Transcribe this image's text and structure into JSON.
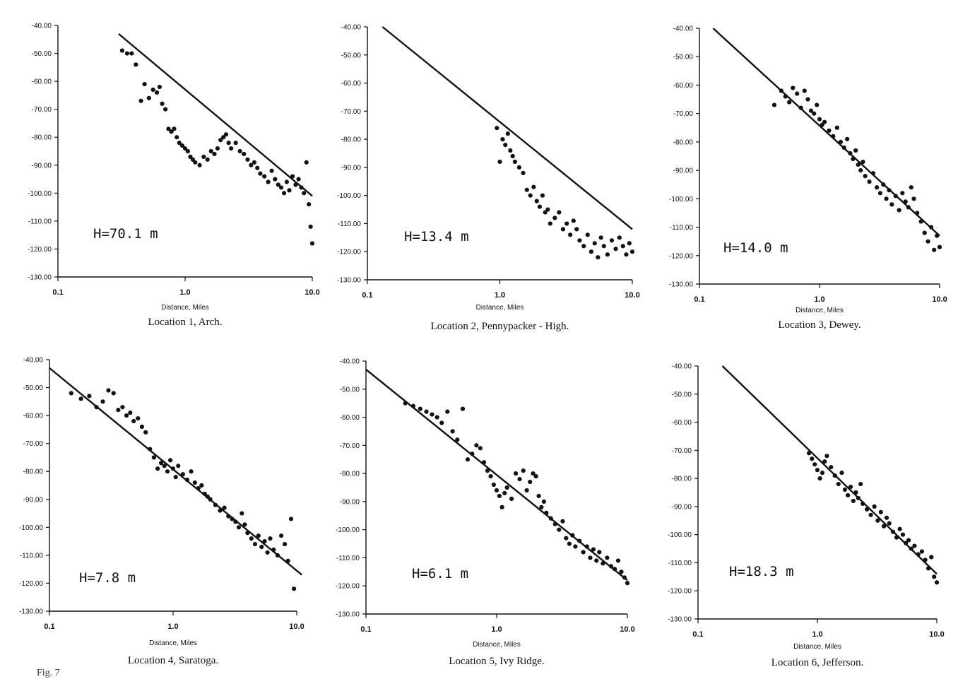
{
  "figure_footer": "Fig. 7",
  "chart_data": [
    {
      "type": "scatter",
      "caption": "Location 1, Arch.",
      "xlabel": "Distance, Miles",
      "annotation": "H=70.1 m",
      "xscale": "log",
      "xlim": [
        0.1,
        10.0
      ],
      "xticks": [
        "0.1",
        "1.0",
        "10.0"
      ],
      "ylim": [
        -130,
        -40
      ],
      "yticks": [
        "-40.00",
        "-50.00",
        "-60.00",
        "-70.00",
        "-80.00",
        "-90.00",
        "-100.00",
        "-110.00",
        "-120.00",
        "-130.00"
      ],
      "series": [
        {
          "kind": "line",
          "x": [
            0.3,
            10.0
          ],
          "y": [
            -43,
            -101
          ]
        },
        {
          "kind": "points",
          "x": [
            0.32,
            0.35,
            0.38,
            0.41,
            0.45,
            0.48,
            0.52,
            0.56,
            0.6,
            0.63,
            0.66,
            0.7,
            0.74,
            0.78,
            0.82,
            0.86,
            0.9,
            0.95,
            1.0,
            1.05,
            1.1,
            1.15,
            1.2,
            1.3,
            1.4,
            1.5,
            1.6,
            1.7,
            1.8,
            1.9,
            2.0,
            2.1,
            2.2,
            2.3,
            2.5,
            2.7,
            2.9,
            3.1,
            3.3,
            3.5,
            3.7,
            3.9,
            4.2,
            4.5,
            4.8,
            5.1,
            5.4,
            5.7,
            6.0,
            6.3,
            6.6,
            7.0,
            7.4,
            7.8,
            8.2,
            8.6,
            9.0,
            9.4,
            9.7,
            10.0
          ],
          "y": [
            -49,
            -50,
            -50,
            -54,
            -67,
            -61,
            -66,
            -63,
            -64,
            -62,
            -68,
            -70,
            -77,
            -78,
            -77,
            -80,
            -82,
            -83,
            -84,
            -85,
            -87,
            -88,
            -89,
            -90,
            -87,
            -88,
            -85,
            -86,
            -84,
            -81,
            -80,
            -79,
            -82,
            -84,
            -82,
            -85,
            -86,
            -88,
            -90,
            -89,
            -91,
            -93,
            -94,
            -96,
            -92,
            -95,
            -97,
            -98,
            -100,
            -96,
            -99,
            -94,
            -97,
            -95,
            -98,
            -100,
            -89,
            -104,
            -112,
            -118
          ]
        }
      ]
    },
    {
      "type": "scatter",
      "caption": "Location 2, Pennypacker - High.",
      "xlabel": "Distance, Miles",
      "annotation": "H=13.4 m",
      "xscale": "log",
      "xlim": [
        0.1,
        10.0
      ],
      "xticks": [
        "0.1",
        "1.0",
        "10.0"
      ],
      "ylim": [
        -130,
        -40
      ],
      "yticks": [
        "-40.00",
        "-50.00",
        "-60.00",
        "-70.00",
        "-80.00",
        "-90.00",
        "-100.00",
        "-110.00",
        "-120.00",
        "-130.00"
      ],
      "series": [
        {
          "kind": "line",
          "x": [
            0.13,
            10.0
          ],
          "y": [
            -40,
            -112
          ]
        },
        {
          "kind": "points",
          "x": [
            0.95,
            1.0,
            1.05,
            1.1,
            1.15,
            1.2,
            1.25,
            1.3,
            1.4,
            1.5,
            1.6,
            1.7,
            1.8,
            1.9,
            2.0,
            2.1,
            2.2,
            2.3,
            2.4,
            2.6,
            2.8,
            3.0,
            3.2,
            3.4,
            3.6,
            3.8,
            4.0,
            4.3,
            4.6,
            4.9,
            5.2,
            5.5,
            5.8,
            6.1,
            6.5,
            7.0,
            7.5,
            8.0,
            8.5,
            9.0,
            9.5,
            10.0
          ],
          "y": [
            -76,
            -88,
            -80,
            -82,
            -78,
            -84,
            -86,
            -88,
            -90,
            -92,
            -98,
            -100,
            -97,
            -102,
            -104,
            -100,
            -106,
            -105,
            -110,
            -108,
            -106,
            -112,
            -110,
            -114,
            -109,
            -112,
            -116,
            -118,
            -114,
            -120,
            -117,
            -122,
            -115,
            -118,
            -121,
            -116,
            -119,
            -115,
            -118,
            -121,
            -117,
            -120
          ]
        }
      ]
    },
    {
      "type": "scatter",
      "caption": "Location 3, Dewey.",
      "xlabel": "Distance, Miles",
      "annotation": "H=14.0 m",
      "xscale": "log",
      "xlim": [
        0.1,
        10.0
      ],
      "xticks": [
        "0.1",
        "1.0",
        "10.0"
      ],
      "ylim": [
        -130,
        -40
      ],
      "yticks": [
        "-40.00",
        "-50.00",
        "-60.00",
        "-70.00",
        "-80.00",
        "-90.00",
        "-100.00",
        "-110.00",
        "-120.00",
        "-130.00"
      ],
      "series": [
        {
          "kind": "line",
          "x": [
            0.13,
            10.0
          ],
          "y": [
            -40,
            -113
          ]
        },
        {
          "kind": "points",
          "x": [
            0.42,
            0.48,
            0.52,
            0.56,
            0.6,
            0.65,
            0.7,
            0.75,
            0.8,
            0.85,
            0.9,
            0.95,
            1.0,
            1.05,
            1.1,
            1.2,
            1.3,
            1.4,
            1.5,
            1.6,
            1.7,
            1.8,
            1.9,
            2.0,
            2.1,
            2.2,
            2.3,
            2.4,
            2.6,
            2.8,
            3.0,
            3.2,
            3.4,
            3.6,
            3.8,
            4.0,
            4.3,
            4.6,
            4.9,
            5.2,
            5.5,
            5.8,
            6.1,
            6.5,
            7.0,
            7.5,
            8.0,
            8.5,
            9.0,
            9.5,
            10.0
          ],
          "y": [
            -67,
            -62,
            -64,
            -66,
            -61,
            -63,
            -68,
            -62,
            -65,
            -69,
            -70,
            -67,
            -72,
            -74,
            -73,
            -76,
            -78,
            -75,
            -80,
            -82,
            -79,
            -84,
            -86,
            -83,
            -88,
            -90,
            -87,
            -92,
            -94,
            -91,
            -96,
            -98,
            -95,
            -100,
            -97,
            -102,
            -99,
            -104,
            -98,
            -101,
            -103,
            -96,
            -100,
            -105,
            -108,
            -112,
            -115,
            -110,
            -118,
            -113,
            -117
          ]
        }
      ]
    },
    {
      "type": "scatter",
      "caption": "Location 4, Saratoga.",
      "xlabel": "Distance, Miles",
      "annotation": "H=7.8 m",
      "xscale": "log",
      "xlim": [
        0.1,
        10.0
      ],
      "xticks": [
        "0.1",
        "1.0",
        "10.0"
      ],
      "ylim": [
        -130,
        -40
      ],
      "yticks": [
        "-40.00",
        "-50.00",
        "-60.00",
        "-70.00",
        "-80.00",
        "-90.00",
        "-100.00",
        "-110.00",
        "-120.00",
        "-130.00"
      ],
      "series": [
        {
          "kind": "line",
          "x": [
            0.1,
            11.0
          ],
          "y": [
            -43,
            -117
          ]
        },
        {
          "kind": "points",
          "x": [
            0.15,
            0.18,
            0.21,
            0.24,
            0.27,
            0.3,
            0.33,
            0.36,
            0.39,
            0.42,
            0.45,
            0.48,
            0.52,
            0.56,
            0.6,
            0.65,
            0.7,
            0.75,
            0.8,
            0.85,
            0.9,
            0.95,
            1.0,
            1.05,
            1.1,
            1.2,
            1.3,
            1.4,
            1.5,
            1.6,
            1.7,
            1.8,
            1.9,
            2.0,
            2.2,
            2.4,
            2.6,
            2.8,
            3.0,
            3.2,
            3.4,
            3.6,
            3.8,
            4.0,
            4.3,
            4.6,
            4.9,
            5.2,
            5.5,
            5.8,
            6.1,
            6.5,
            7.0,
            7.5,
            8.0,
            8.5,
            9.0,
            9.5
          ],
          "y": [
            -52,
            -54,
            -53,
            -57,
            -55,
            -51,
            -52,
            -58,
            -57,
            -60,
            -59,
            -62,
            -61,
            -64,
            -66,
            -72,
            -75,
            -79,
            -77,
            -78,
            -80,
            -76,
            -79,
            -82,
            -78,
            -81,
            -83,
            -80,
            -84,
            -86,
            -85,
            -88,
            -89,
            -90,
            -92,
            -94,
            -93,
            -96,
            -97,
            -98,
            -100,
            -95,
            -99,
            -102,
            -104,
            -106,
            -103,
            -107,
            -105,
            -109,
            -104,
            -108,
            -110,
            -103,
            -106,
            -112,
            -97,
            -122
          ]
        }
      ]
    },
    {
      "type": "scatter",
      "caption": "Location 5, Ivy Ridge.",
      "xlabel": "Distance, Miles",
      "annotation": "H=6.1 m",
      "xscale": "log",
      "xlim": [
        0.1,
        10.0
      ],
      "xticks": [
        "0.1",
        "1.0",
        "10.0"
      ],
      "ylim": [
        -130,
        -40
      ],
      "yticks": [
        "-40.00",
        "-50.00",
        "-60.00",
        "-70.00",
        "-80.00",
        "-90.00",
        "-100.00",
        "-110.00",
        "-120.00",
        "-130.00"
      ],
      "series": [
        {
          "kind": "line",
          "x": [
            0.1,
            10.0
          ],
          "y": [
            -43,
            -118
          ]
        },
        {
          "kind": "points",
          "x": [
            0.2,
            0.23,
            0.26,
            0.29,
            0.32,
            0.35,
            0.38,
            0.42,
            0.46,
            0.5,
            0.55,
            0.6,
            0.65,
            0.7,
            0.75,
            0.8,
            0.85,
            0.9,
            0.95,
            1.0,
            1.05,
            1.1,
            1.15,
            1.2,
            1.3,
            1.4,
            1.5,
            1.6,
            1.7,
            1.8,
            1.9,
            2.0,
            2.1,
            2.2,
            2.3,
            2.4,
            2.6,
            2.8,
            3.0,
            3.2,
            3.4,
            3.6,
            3.8,
            4.0,
            4.3,
            4.6,
            4.9,
            5.2,
            5.5,
            5.8,
            6.1,
            6.5,
            7.0,
            7.5,
            8.0,
            8.5,
            9.0,
            9.5,
            10.0
          ],
          "y": [
            -55,
            -56,
            -57,
            -58,
            -59,
            -60,
            -62,
            -58,
            -65,
            -68,
            -57,
            -75,
            -73,
            -70,
            -71,
            -76,
            -79,
            -81,
            -84,
            -86,
            -88,
            -92,
            -87,
            -85,
            -89,
            -80,
            -82,
            -79,
            -86,
            -83,
            -80,
            -81,
            -88,
            -92,
            -90,
            -94,
            -96,
            -98,
            -100,
            -97,
            -103,
            -105,
            -102,
            -106,
            -104,
            -108,
            -106,
            -110,
            -107,
            -111,
            -108,
            -112,
            -110,
            -113,
            -114,
            -111,
            -115,
            -117,
            -119
          ]
        }
      ]
    },
    {
      "type": "scatter",
      "caption": "Location 6, Jefferson.",
      "xlabel": "Distance, Miles",
      "annotation": "H=18.3 m",
      "xscale": "log",
      "xlim": [
        0.1,
        10.0
      ],
      "xticks": [
        "0.1",
        "1.0",
        "10.0"
      ],
      "ylim": [
        -130,
        -40
      ],
      "yticks": [
        "-40.00",
        "-50.00",
        "-60.00",
        "-70.00",
        "-80.00",
        "-90.00",
        "-100.00",
        "-110.00",
        "-120.00",
        "-130.00"
      ],
      "series": [
        {
          "kind": "line",
          "x": [
            0.16,
            10.0
          ],
          "y": [
            -40,
            -114
          ]
        },
        {
          "kind": "points",
          "x": [
            0.85,
            0.9,
            0.95,
            1.0,
            1.05,
            1.1,
            1.15,
            1.2,
            1.3,
            1.4,
            1.5,
            1.6,
            1.7,
            1.8,
            1.9,
            2.0,
            2.1,
            2.2,
            2.3,
            2.4,
            2.6,
            2.8,
            3.0,
            3.2,
            3.4,
            3.6,
            3.8,
            4.0,
            4.3,
            4.6,
            4.9,
            5.2,
            5.5,
            5.8,
            6.1,
            6.5,
            7.0,
            7.5,
            8.0,
            8.5,
            9.0,
            9.5,
            10.0
          ],
          "y": [
            -71,
            -73,
            -75,
            -77,
            -80,
            -78,
            -74,
            -72,
            -76,
            -79,
            -82,
            -78,
            -84,
            -86,
            -83,
            -88,
            -85,
            -87,
            -82,
            -89,
            -91,
            -93,
            -90,
            -95,
            -92,
            -97,
            -94,
            -96,
            -99,
            -101,
            -98,
            -100,
            -103,
            -102,
            -105,
            -104,
            -107,
            -106,
            -109,
            -112,
            -108,
            -115,
            -117
          ]
        }
      ]
    }
  ]
}
